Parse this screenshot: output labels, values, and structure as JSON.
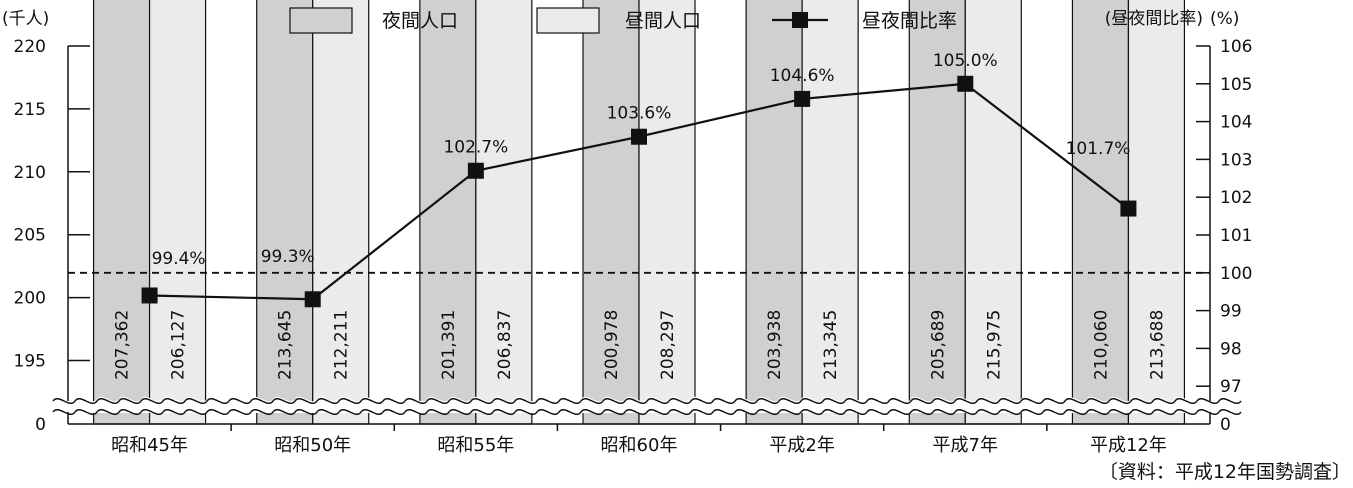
{
  "chart_data": {
    "type": "bar",
    "categories": [
      "昭和45年",
      "昭和50年",
      "昭和55年",
      "昭和60年",
      "平成2年",
      "平成7年",
      "平成12年"
    ],
    "series": [
      {
        "name": "夜間人口",
        "kind": "bar",
        "color": "#d0d0d0",
        "values": [
          207362,
          213645,
          201391,
          200978,
          203938,
          205689,
          210060
        ],
        "labels": [
          "207,362",
          "213,645",
          "201,391",
          "200,978",
          "203,938",
          "205,689",
          "210,060"
        ]
      },
      {
        "name": "昼間人口",
        "kind": "bar",
        "color": "#ebebeb",
        "values": [
          206127,
          212211,
          206837,
          208297,
          213345,
          215975,
          213688
        ],
        "labels": [
          "206,127",
          "212,211",
          "206,837",
          "208,297",
          "213,345",
          "215,975",
          "213,688"
        ]
      },
      {
        "name": "昼夜間比率",
        "kind": "line",
        "axis": "right",
        "color": "#111111",
        "values": [
          99.4,
          99.3,
          102.7,
          103.6,
          104.6,
          105.0,
          101.7
        ],
        "labels": [
          "99.4%",
          "99.3%",
          "102.7%",
          "103.6%",
          "104.6%",
          "105.0%",
          "101.7%"
        ]
      }
    ],
    "y_left": {
      "unit": "(千人)",
      "ticks": [
        220,
        215,
        210,
        205,
        200,
        195
      ],
      "bottom_tick": "0",
      "ylim": [
        193,
        220
      ]
    },
    "y_right": {
      "unit_left": "(昼夜間比率)",
      "unit_right": "(%)",
      "ticks": [
        106,
        105,
        104,
        103,
        102,
        101,
        100,
        99,
        98,
        97
      ],
      "bottom_tick": "0",
      "ylim": [
        96.6,
        106
      ],
      "reference_line": 100
    },
    "axis_break": true,
    "legend_position": "top",
    "source": "〔資料：平成12年国勢調査〕"
  }
}
